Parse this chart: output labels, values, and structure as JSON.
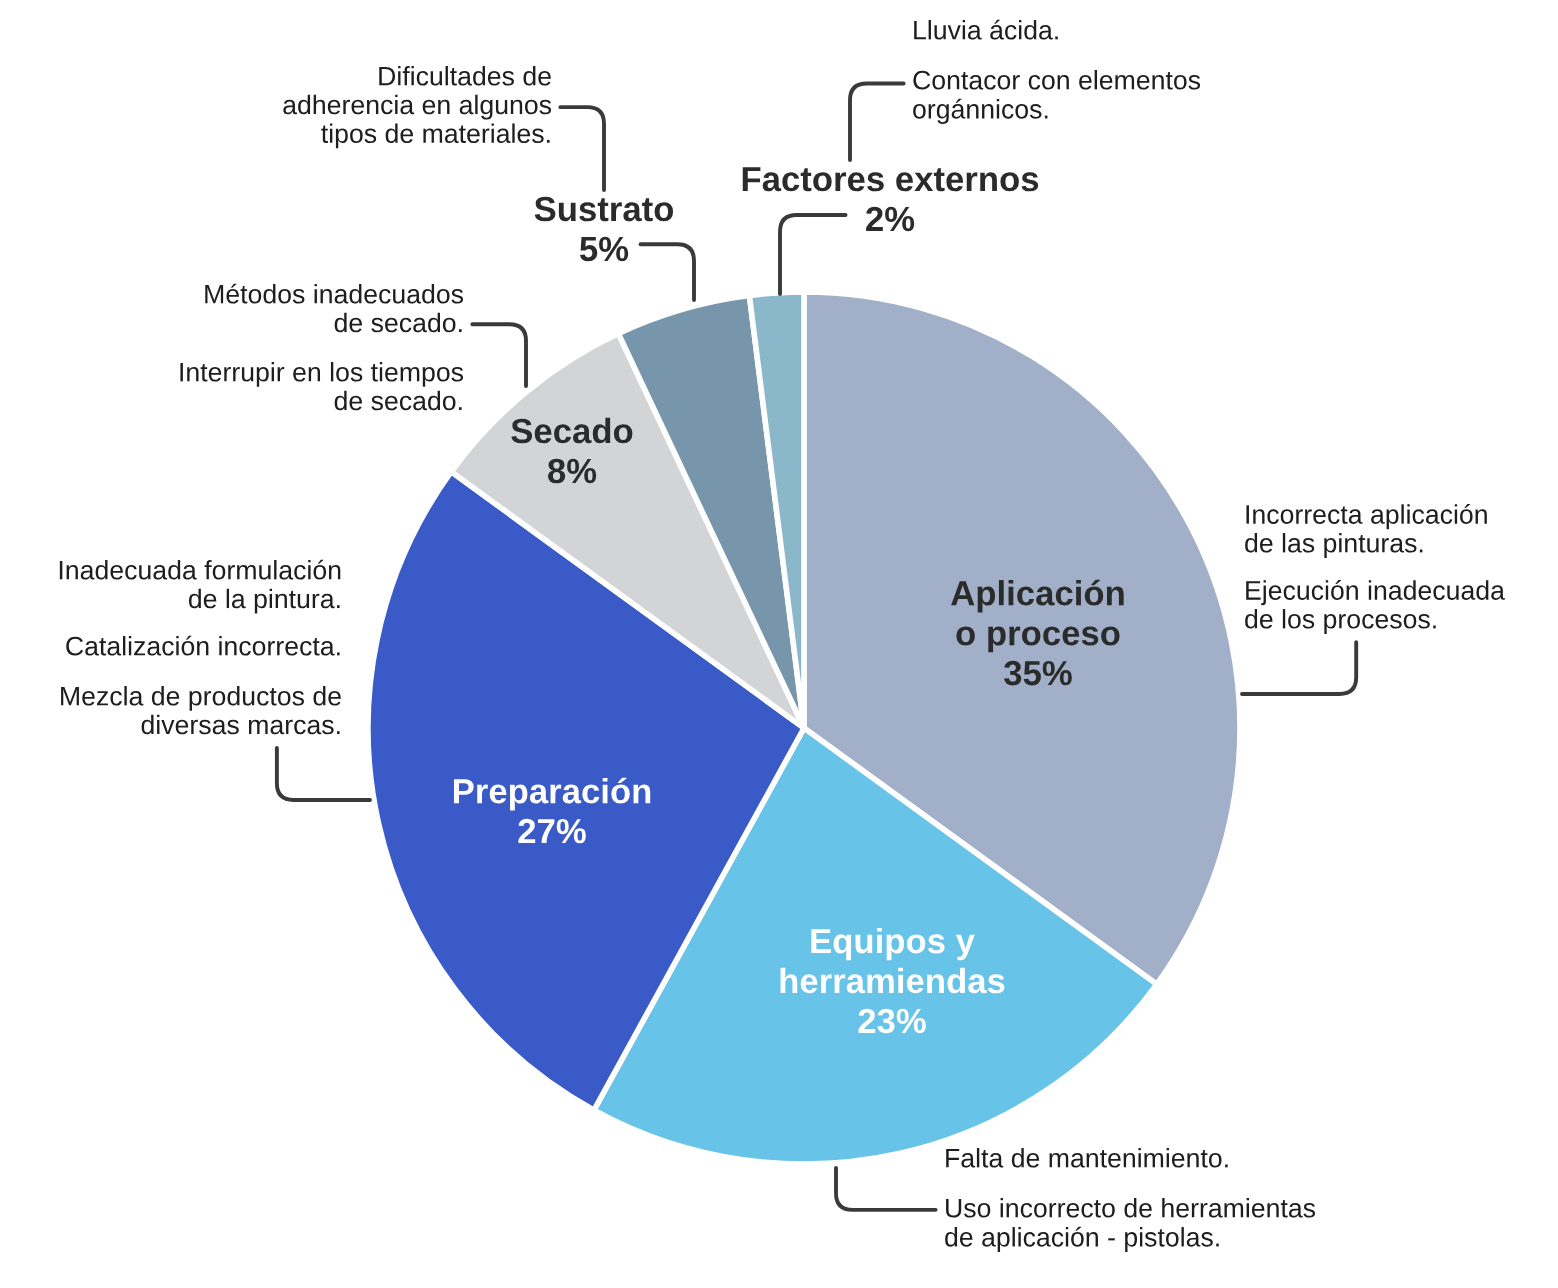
{
  "chart_data": {
    "type": "pie",
    "categories": [
      "Aplicación\no proceso",
      "Equipos y\nherramiendas",
      "Preparación",
      "Secado",
      "Sustrato",
      "Factores externos"
    ],
    "values": [
      35,
      23,
      27,
      8,
      5,
      2
    ],
    "value_labels": [
      "35%",
      "23%",
      "27%",
      "8%",
      "5%",
      "2%"
    ],
    "colors": [
      "#a1b0c8",
      "#68c3e8",
      "#3a5bc7",
      "#d3d4d6",
      "#7896ab",
      "#8ab8ca"
    ],
    "annotations": [
      "Incorrecta aplicación\nde las pinturas.",
      "Ejecución inadecuada\nde los procesos.",
      "Falta de mantenimiento.",
      "Uso incorrecto de herramientas\nde aplicación - pistolas.",
      "Inadecuada formulación\nde la pintura.",
      "Catalización incorrecta.",
      "Mezcla de productos de\ndiversas marcas.",
      "Métodos inadecuados\nde secado.",
      "Interrupir en los tiempos\nde secado.",
      "Dificultades de\nadherencia en algunos\ntipos de materiales.",
      "Lluvia ácida.",
      "Contacor con elementos\norgánnicos."
    ]
  }
}
